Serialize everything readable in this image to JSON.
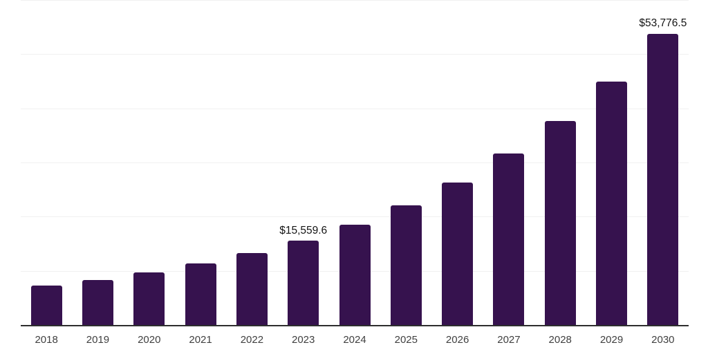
{
  "chart_data": {
    "type": "bar",
    "title": "",
    "xlabel": "",
    "ylabel": "",
    "categories": [
      "2018",
      "2019",
      "2020",
      "2021",
      "2022",
      "2023",
      "2024",
      "2025",
      "2026",
      "2027",
      "2028",
      "2029",
      "2030"
    ],
    "values": [
      7280,
      8360,
      9700,
      11360,
      13270,
      15559.6,
      18510,
      22080,
      26290,
      31650,
      37720,
      44930,
      53776.5
    ],
    "data_labels": [
      "",
      "",
      "",
      "",
      "",
      "$15,559.6",
      "",
      "",
      "",
      "",
      "",
      "",
      "$53,776.5"
    ],
    "ylim": [
      0,
      60000
    ],
    "gridline_values": [
      10000,
      20000,
      30000,
      40000,
      50000,
      60000
    ],
    "grid": true,
    "legend": false,
    "colors": {
      "bar": "#36124e",
      "axis_line": "#2e2e2e",
      "gridline": "#f0f0f0",
      "tick_label": "#404040",
      "data_label": "#141414",
      "background": "#ffffff"
    }
  }
}
